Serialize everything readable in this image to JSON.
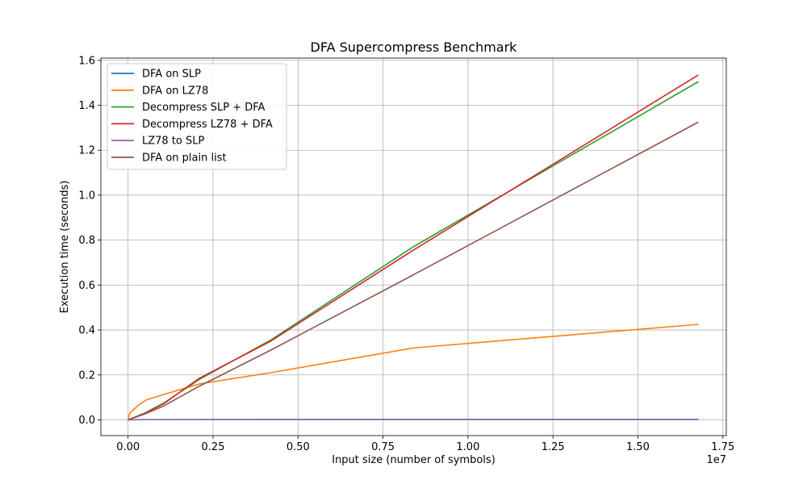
{
  "chart_data": {
    "type": "line",
    "title": "DFA Supercompress Benchmark",
    "xlabel": "Input size (number of symbols)",
    "ylabel": "Execution time (seconds)",
    "x_offset_label": "1e7",
    "xlim": [
      -0.08,
      1.76
    ],
    "ylim": [
      -0.07,
      1.61
    ],
    "xticks": [
      0.0,
      0.25,
      0.5,
      0.75,
      1.0,
      1.25,
      1.5,
      1.75
    ],
    "xtick_labels": [
      "0.00",
      "0.25",
      "0.50",
      "0.75",
      "1.00",
      "1.25",
      "1.50",
      "1.75"
    ],
    "yticks": [
      0.0,
      0.2,
      0.4,
      0.6,
      0.8,
      1.0,
      1.2,
      1.4,
      1.6
    ],
    "ytick_labels": [
      "0.0",
      "0.2",
      "0.4",
      "0.6",
      "0.8",
      "1.0",
      "1.2",
      "1.4",
      "1.6"
    ],
    "grid": true,
    "legend_position": "top-left",
    "series": [
      {
        "name": "DFA on SLP",
        "color": "#1f77b4",
        "x": [
          0.0,
          0.0016,
          0.0066,
          0.0262,
          0.0524,
          0.1049,
          0.2097,
          0.4194,
          0.8389,
          1.6777
        ],
        "y": [
          0.0,
          0.0005,
          0.0008,
          0.001,
          0.0012,
          0.0013,
          0.0015,
          0.0017,
          0.0019,
          0.0021
        ]
      },
      {
        "name": "DFA on LZ78",
        "color": "#ff7f0e",
        "x": [
          0.0,
          0.0016,
          0.0066,
          0.0262,
          0.0524,
          0.1049,
          0.2097,
          0.4194,
          0.8389,
          1.6777
        ],
        "y": [
          0.0,
          0.015,
          0.033,
          0.06,
          0.088,
          0.113,
          0.16,
          0.21,
          0.32,
          0.425
        ]
      },
      {
        "name": "Decompress SLP + DFA",
        "color": "#2ca02c",
        "x": [
          0.0,
          0.0016,
          0.0066,
          0.0262,
          0.0524,
          0.1049,
          0.2097,
          0.4194,
          0.8389,
          1.6777
        ],
        "y": [
          0.0,
          0.001,
          0.004,
          0.016,
          0.033,
          0.075,
          0.18,
          0.355,
          0.77,
          1.505
        ]
      },
      {
        "name": "Decompress LZ78 + DFA",
        "color": "#d62728",
        "x": [
          0.0,
          0.0016,
          0.0066,
          0.0262,
          0.0524,
          0.1049,
          0.2097,
          0.4194,
          0.8389,
          1.6777
        ],
        "y": [
          0.0,
          0.001,
          0.004,
          0.015,
          0.031,
          0.072,
          0.185,
          0.35,
          0.755,
          1.535
        ]
      },
      {
        "name": "LZ78 to SLP",
        "color": "#9467bd",
        "x": [
          0.0,
          0.0016,
          0.0066,
          0.0262,
          0.0524,
          0.1049,
          0.2097,
          0.4194,
          0.8389,
          1.6777
        ],
        "y": [
          0.0,
          0.0003,
          0.0005,
          0.0007,
          0.0009,
          0.001,
          0.0012,
          0.0014,
          0.0016,
          0.0018
        ]
      },
      {
        "name": "DFA on plain list",
        "color": "#8c564b",
        "x": [
          0.0,
          0.0016,
          0.0066,
          0.0262,
          0.0524,
          0.1049,
          0.2097,
          0.4194,
          0.8389,
          1.6777
        ],
        "y": [
          0.0,
          0.001,
          0.004,
          0.014,
          0.028,
          0.062,
          0.15,
          0.31,
          0.645,
          1.325
        ]
      }
    ]
  }
}
